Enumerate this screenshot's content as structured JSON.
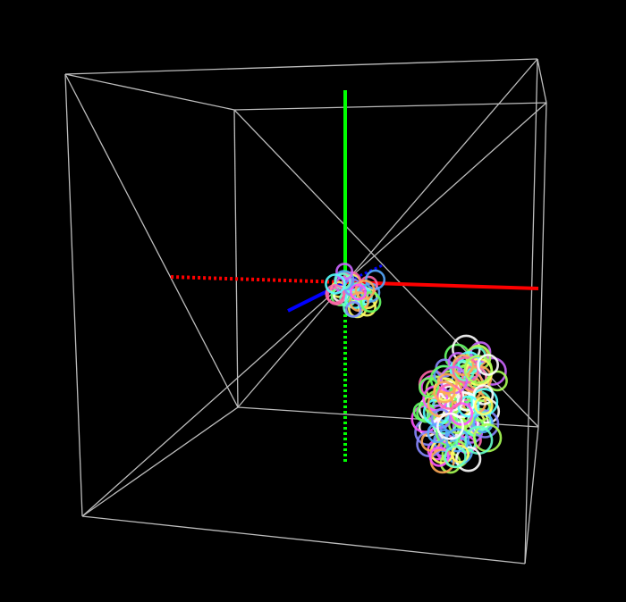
{
  "scene": {
    "background": "#000000",
    "box_color": "#bdbdbd",
    "axes": {
      "x": {
        "color": "#ff0000"
      },
      "y": {
        "color": "#00ff00"
      },
      "z": {
        "color": "#0000ff"
      }
    }
  },
  "clusters": [
    {
      "name": "center-cluster",
      "count": 30
    },
    {
      "name": "lower-right-cluster",
      "count": 110
    }
  ],
  "palette": [
    "#ff55ff",
    "#55ffff",
    "#ffff66",
    "#66ff66",
    "#8888ff",
    "#ff66aa",
    "#aaff55",
    "#55aaff",
    "#ffaa55",
    "#cc66ff",
    "#ffffff",
    "#66ffcc"
  ]
}
